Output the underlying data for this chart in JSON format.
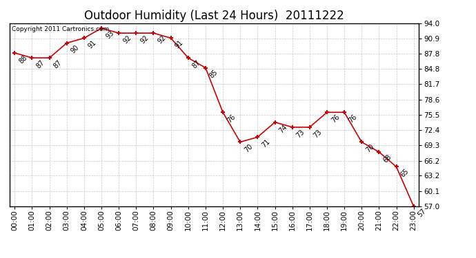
{
  "title": "Outdoor Humidity (Last 24 Hours)  20111222",
  "copyright": "Copyright 2011 Cartronics.com",
  "x_labels": [
    "00:00",
    "01:00",
    "02:00",
    "03:00",
    "04:00",
    "05:00",
    "06:00",
    "07:00",
    "08:00",
    "09:00",
    "10:00",
    "11:00",
    "12:00",
    "13:00",
    "14:00",
    "15:00",
    "16:00",
    "17:00",
    "18:00",
    "19:00",
    "20:00",
    "21:00",
    "22:00",
    "23:00"
  ],
  "points_x": [
    0,
    1,
    2,
    3,
    4,
    5,
    6,
    7,
    8,
    9,
    10,
    11,
    12,
    13,
    14,
    15,
    16,
    17,
    18,
    19,
    20,
    21,
    22,
    23
  ],
  "points_y": [
    88,
    87,
    87,
    90,
    91,
    93,
    92,
    92,
    92,
    91,
    87,
    85,
    76,
    70,
    71,
    74,
    73,
    73,
    76,
    76,
    70,
    68,
    65,
    57
  ],
  "annotations": [
    [
      0,
      88,
      "88"
    ],
    [
      1,
      87,
      "87"
    ],
    [
      2,
      87,
      "87"
    ],
    [
      3,
      90,
      "90"
    ],
    [
      4,
      91,
      "91"
    ],
    [
      5,
      93,
      "93"
    ],
    [
      6,
      92,
      "92"
    ],
    [
      7,
      92,
      "92"
    ],
    [
      8,
      92,
      "92"
    ],
    [
      9,
      91,
      "91"
    ],
    [
      10,
      87,
      "87"
    ],
    [
      11,
      85,
      "85"
    ],
    [
      12,
      76,
      "76"
    ],
    [
      13,
      70,
      "70"
    ],
    [
      14,
      71,
      "71"
    ],
    [
      15,
      74,
      "74"
    ],
    [
      16,
      73,
      "73"
    ],
    [
      17,
      73,
      "73"
    ],
    [
      18,
      76,
      "76"
    ],
    [
      19,
      76,
      "76"
    ],
    [
      20,
      70,
      "70"
    ],
    [
      21,
      68,
      "68"
    ],
    [
      22,
      65,
      "65"
    ],
    [
      23,
      57,
      "57"
    ]
  ],
  "ylim_min": 57.0,
  "ylim_max": 94.0,
  "yticks": [
    57.0,
    60.1,
    63.2,
    66.2,
    69.3,
    72.4,
    75.5,
    78.6,
    81.7,
    84.8,
    87.8,
    90.9,
    94.0
  ],
  "line_color": "#cc0000",
  "bg_color": "#ffffff",
  "grid_color": "#bbbbbb",
  "title_fontsize": 12,
  "tick_fontsize": 7.5,
  "annotation_fontsize": 7,
  "copyright_fontsize": 6.5
}
